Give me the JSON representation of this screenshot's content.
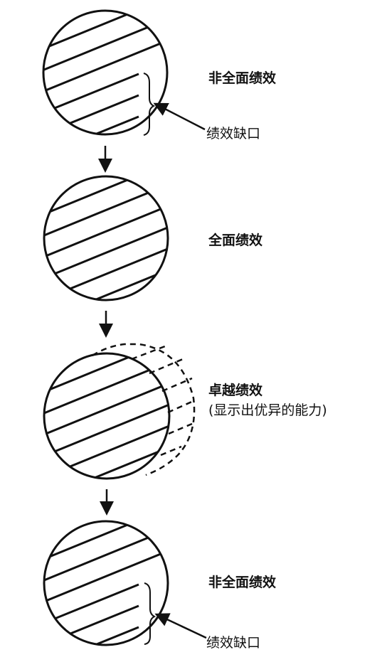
{
  "stages": [
    {
      "label": "非全面绩效",
      "gap_label": "绩效缺口"
    },
    {
      "label": "全面绩效"
    },
    {
      "label": "卓越绩效",
      "sub_label": "(显示出优异的能力)"
    },
    {
      "label": "非全面绩效",
      "gap_label": "绩效缺口"
    }
  ]
}
